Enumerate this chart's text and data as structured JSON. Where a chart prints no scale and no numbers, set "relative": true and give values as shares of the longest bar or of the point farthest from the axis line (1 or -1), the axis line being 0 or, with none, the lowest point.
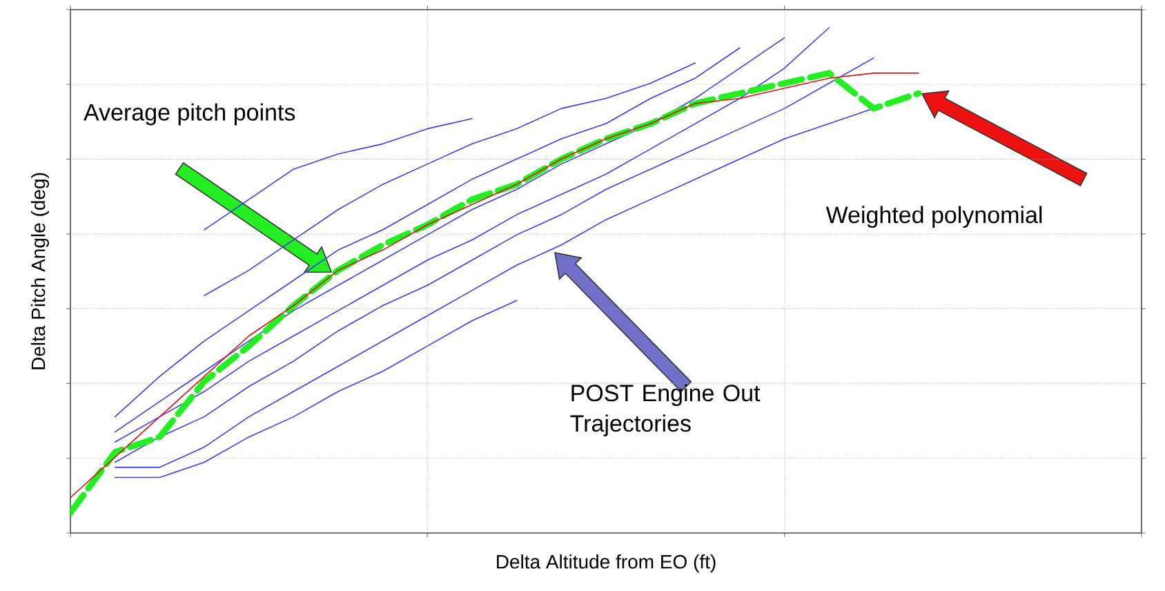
{
  "chart_data": {
    "type": "line",
    "xlabel": "Delta Altitude from EO (ft)",
    "ylabel": "Delta Pitch Angle (deg)",
    "relative": true,
    "grid": true,
    "annotations": [
      "Average pitch points",
      "POST Engine Out Trajectories",
      "Weighted polynomial"
    ],
    "categories": [
      null,
      null,
      null,
      null,
      null,
      null,
      null,
      null,
      null,
      null,
      null,
      null,
      null,
      null,
      null,
      null,
      null,
      null,
      null,
      null,
      null,
      null,
      null,
      null,
      null
    ],
    "series": [
      {
        "color": "#3c3cf0",
        "values": [
          null,
          null,
          null,
          0.6,
          0.66,
          0.72,
          0.75,
          0.77,
          0.8,
          0.82,
          null,
          null,
          null,
          null,
          null,
          null,
          null,
          null,
          null,
          null,
          null,
          null,
          null,
          null,
          null
        ]
      },
      {
        "color": "#3c3cf0",
        "values": [
          null,
          null,
          null,
          0.47,
          0.52,
          0.58,
          0.64,
          0.69,
          0.73,
          0.77,
          0.8,
          0.84,
          0.86,
          0.89,
          0.93,
          null,
          null,
          null,
          null,
          null,
          null,
          null,
          null,
          null,
          null
        ]
      },
      {
        "color": "#3c3cf0",
        "values": [
          null,
          0.23,
          0.31,
          0.38,
          0.44,
          0.5,
          0.56,
          0.6,
          0.65,
          0.7,
          0.74,
          0.78,
          0.81,
          0.86,
          0.9,
          0.96,
          null,
          null,
          null,
          null,
          null,
          null,
          null,
          null,
          null
        ]
      },
      {
        "color": "#3c3cf0",
        "values": [
          null,
          0.2,
          0.26,
          0.32,
          0.38,
          0.44,
          0.49,
          0.54,
          0.59,
          0.64,
          0.68,
          0.73,
          0.77,
          0.81,
          0.86,
          0.92,
          0.98,
          null,
          null,
          null,
          null,
          null,
          null,
          null,
          null
        ]
      },
      {
        "color": "#3c3cf0",
        "values": [
          null,
          0.18,
          0.23,
          0.28,
          0.34,
          0.39,
          0.44,
          0.49,
          0.54,
          0.58,
          0.63,
          0.67,
          0.71,
          0.76,
          0.81,
          0.86,
          0.92,
          1.0,
          null,
          null,
          null,
          null,
          null,
          null,
          null
        ]
      },
      {
        "color": "#3c3cf0",
        "values": [
          null,
          0.14,
          0.19,
          0.23,
          0.29,
          0.34,
          0.4,
          0.45,
          0.49,
          0.54,
          0.59,
          0.63,
          0.68,
          0.72,
          0.76,
          0.8,
          0.84,
          0.89,
          0.94,
          null,
          null,
          null,
          null,
          null,
          null
        ]
      },
      {
        "color": "#3c3cf0",
        "values": [
          null,
          0.13,
          0.13,
          0.17,
          0.23,
          0.28,
          0.33,
          0.38,
          0.43,
          0.48,
          0.53,
          0.57,
          0.62,
          0.66,
          0.7,
          0.74,
          0.78,
          0.81,
          0.84,
          null,
          null,
          null,
          null,
          null,
          null
        ]
      },
      {
        "color": "#3c3cf0",
        "values": [
          null,
          0.11,
          0.11,
          0.14,
          0.19,
          0.23,
          0.28,
          0.32,
          0.37,
          0.42,
          0.46,
          null,
          null,
          null,
          null,
          null,
          null,
          null,
          null,
          null,
          null,
          null,
          null,
          null,
          null
        ]
      },
      {
        "color": "#22ee22",
        "line_style": "dashed",
        "values": [
          0.04,
          0.16,
          0.19,
          0.3,
          0.37,
          0.45,
          0.52,
          0.57,
          0.61,
          0.66,
          0.69,
          0.74,
          0.78,
          0.81,
          0.85,
          0.87,
          0.89,
          0.91,
          0.84,
          0.87,
          null,
          null,
          null,
          null,
          null
        ]
      },
      {
        "color": "#e01010",
        "values": [
          0.07,
          0.15,
          0.23,
          0.31,
          0.39,
          0.45,
          0.52,
          0.56,
          0.61,
          0.65,
          0.69,
          0.74,
          0.78,
          0.81,
          0.85,
          0.86,
          0.88,
          0.9,
          0.91,
          0.91,
          null,
          null,
          null,
          null,
          null
        ]
      }
    ]
  }
}
